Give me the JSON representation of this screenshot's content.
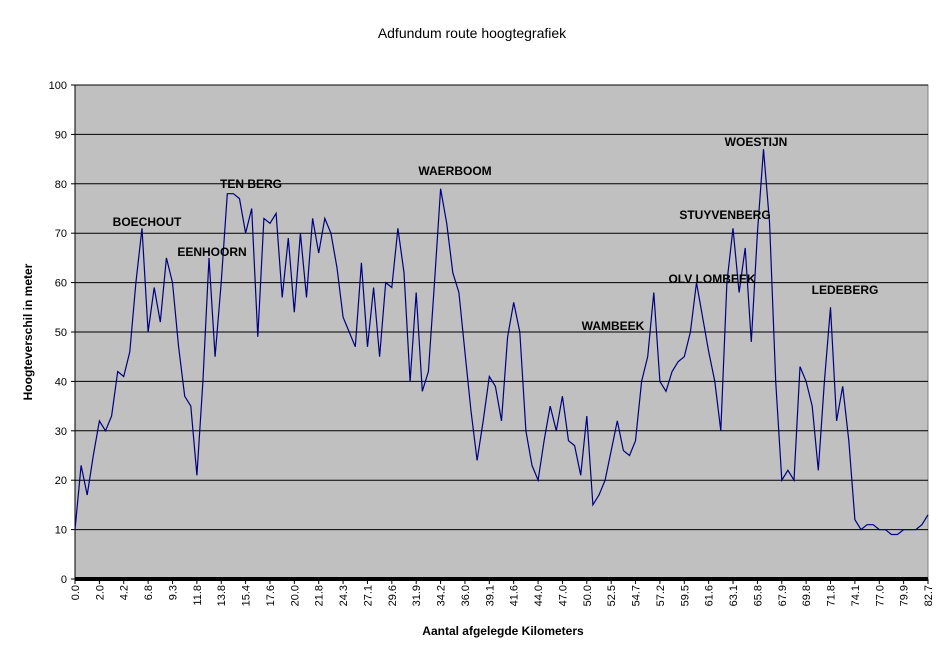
{
  "chart_data": {
    "type": "line",
    "title": "Adfundum route hoogtegrafiek",
    "x_label": "Aantal afgelegde Kilometers",
    "y_label": "Hoogteverschil in meter",
    "categories": [
      "0.0",
      null,
      null,
      null,
      "2.0",
      null,
      null,
      null,
      "4.2",
      null,
      null,
      null,
      "6.8",
      null,
      null,
      null,
      "9.3",
      null,
      null,
      null,
      "11.8",
      null,
      null,
      null,
      "13.8",
      null,
      null,
      null,
      "15.4",
      null,
      null,
      null,
      "17.6",
      null,
      null,
      null,
      "20.0",
      null,
      null,
      null,
      "21.8",
      null,
      null,
      null,
      "24.3",
      null,
      null,
      null,
      "27.1",
      null,
      null,
      null,
      "29.6",
      null,
      null,
      null,
      "31.9",
      null,
      null,
      null,
      "34.2",
      null,
      null,
      null,
      "36.0",
      null,
      null,
      null,
      "39.1",
      null,
      null,
      null,
      "41.6",
      null,
      null,
      null,
      "44.0",
      null,
      null,
      null,
      "47.0",
      null,
      null,
      null,
      "50.0",
      null,
      null,
      null,
      "52.5",
      null,
      null,
      null,
      "54.7",
      null,
      null,
      null,
      "57.2",
      null,
      null,
      null,
      "59.5",
      null,
      null,
      null,
      "61.6",
      null,
      null,
      null,
      "63.1",
      null,
      null,
      null,
      "65.8",
      null,
      null,
      null,
      "67.9",
      null,
      null,
      null,
      "69.8",
      null,
      null,
      null,
      "71.8",
      null,
      null,
      null,
      "74.1",
      null,
      null,
      null,
      "77.0",
      null,
      null,
      null,
      "79.9",
      null,
      null,
      null,
      "82.7"
    ],
    "values": [
      10,
      23,
      17,
      25,
      32,
      30,
      33,
      42,
      41,
      46,
      60,
      71,
      50,
      59,
      52,
      65,
      60,
      47,
      37,
      35,
      21,
      40,
      65,
      45,
      60,
      78,
      78,
      77,
      70,
      75,
      49,
      73,
      72,
      74,
      57,
      69,
      54,
      70,
      57,
      73,
      66,
      73,
      70,
      63,
      53,
      50,
      47,
      64,
      47,
      59,
      45,
      60,
      59,
      71,
      62,
      40,
      58,
      38,
      42,
      60,
      79,
      72,
      62,
      58,
      46,
      34,
      24,
      32,
      41,
      39,
      32,
      49,
      56,
      50,
      30,
      23,
      20,
      28,
      35,
      30,
      37,
      28,
      27,
      21,
      33,
      15,
      17,
      20,
      26,
      32,
      26,
      25,
      28,
      40,
      45,
      58,
      40,
      38,
      42,
      44,
      45,
      50,
      60,
      53,
      46,
      40,
      30,
      60,
      71,
      58,
      67,
      48,
      70,
      87,
      72,
      40,
      20,
      22,
      20,
      43,
      40,
      35,
      22,
      40,
      55,
      32,
      39,
      28,
      12,
      10,
      11,
      11,
      10,
      10,
      9,
      9,
      10,
      10,
      10,
      11,
      13
    ],
    "color": "#000080",
    "ylim": [
      0,
      100
    ],
    "yticks": [
      0,
      10,
      20,
      30,
      40,
      50,
      60,
      70,
      80,
      90,
      100
    ],
    "grid": true,
    "annotations": [
      "BOECHOUT",
      "EENHOORN",
      "TEN BERG",
      "WAERBOOM",
      "WAMBEEK",
      "OLV LOMBEEK",
      "STUYVENBERG",
      "WOESTIJN",
      "LEDEBERG"
    ]
  }
}
